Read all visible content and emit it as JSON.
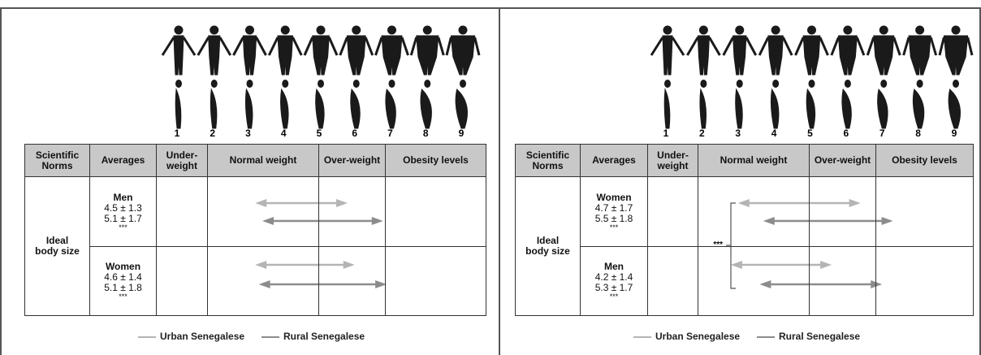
{
  "panels": [
    {
      "scale": [
        1,
        2,
        3,
        4,
        5,
        6,
        7,
        8,
        9
      ],
      "headers": [
        "Scientific Norms",
        "Averages",
        "Under-weight",
        "Normal weight",
        "Over-weight",
        "Obesity levels"
      ],
      "row_label": "Ideal body size",
      "groups": [
        {
          "name": "Men",
          "rows": [
            {
              "label": "4.5 ± 1.3",
              "mean": 4.5,
              "sd": 1.3
            },
            {
              "label": "5.1 ± 1.7",
              "mean": 5.1,
              "sd": 1.7
            }
          ],
          "significance": "***"
        },
        {
          "name": "Women",
          "rows": [
            {
              "label": "4.6 ± 1.4",
              "mean": 4.6,
              "sd": 1.4
            },
            {
              "label": "5.1 ± 1.8",
              "mean": 5.1,
              "sd": 1.8
            }
          ],
          "significance": "***"
        }
      ],
      "legend": [
        {
          "name": "Urban Senegalese",
          "color": "#b4b4b4"
        },
        {
          "name": "Rural Senegalese",
          "color": "#8c8c8c"
        }
      ]
    },
    {
      "scale": [
        1,
        2,
        3,
        4,
        5,
        6,
        7,
        8,
        9
      ],
      "headers": [
        "Scientific Norms",
        "Averages",
        "Under-weight",
        "Normal weight",
        "Over-weight",
        "Obesity levels"
      ],
      "row_label": "Ideal body size",
      "groups": [
        {
          "name": "Women",
          "rows": [
            {
              "label": "4.7 ± 1.7",
              "mean": 4.7,
              "sd": 1.7
            },
            {
              "label": "5.5 ± 1.8",
              "mean": 5.5,
              "sd": 1.8
            }
          ],
          "significance": "***"
        },
        {
          "name": "Men",
          "rows": [
            {
              "label": "4.2 ± 1.4",
              "mean": 4.2,
              "sd": 1.4
            },
            {
              "label": "5.3 ± 1.7",
              "mean": 5.3,
              "sd": 1.7
            }
          ],
          "significance": "***"
        }
      ],
      "between_groups": "***",
      "legend": [
        {
          "name": "Urban Senegalese",
          "color": "#b4b4b4"
        },
        {
          "name": "Rural Senegalese",
          "color": "#8c8c8c"
        }
      ]
    }
  ]
}
